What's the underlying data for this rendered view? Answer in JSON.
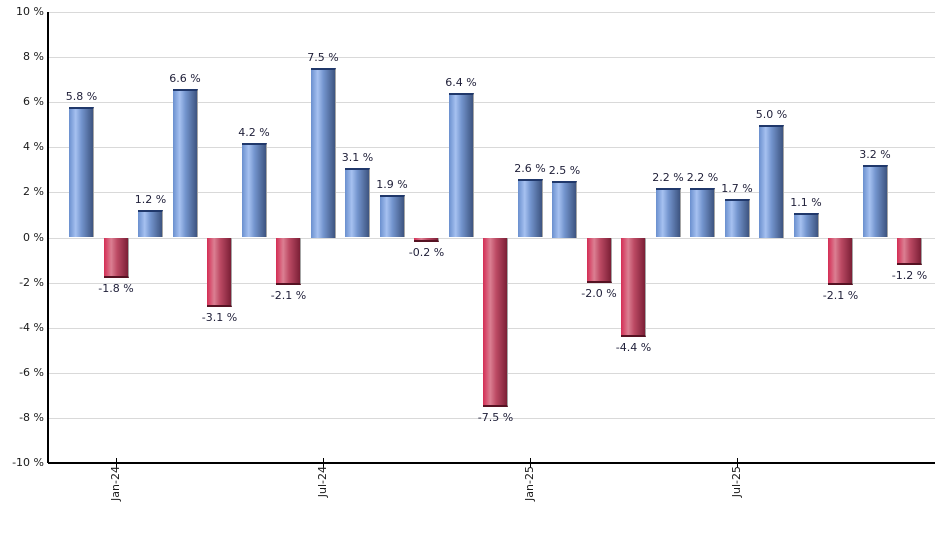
{
  "chart_data": {
    "type": "bar",
    "title": "",
    "xlabel": "",
    "ylabel": "",
    "ylim": [
      -10,
      10
    ],
    "y_tick_step": 2,
    "grid": "horizontal",
    "legend": "none",
    "values": [
      5.8,
      -1.8,
      1.2,
      6.6,
      -3.1,
      4.2,
      -2.1,
      7.5,
      3.1,
      1.9,
      -0.2,
      6.4,
      -7.5,
      2.6,
      2.5,
      -2.0,
      -4.4,
      2.2,
      2.2,
      1.7,
      5.0,
      1.1,
      -2.1,
      3.2,
      -1.2
    ],
    "bar_labels": [
      "5.8 %",
      "-1.8 %",
      "1.2 %",
      "6.6 %",
      "-3.1 %",
      "4.2 %",
      "-2.1 %",
      "7.5 %",
      "3.1 %",
      "1.9 %",
      "-0.2 %",
      "6.4 %",
      "-7.5 %",
      "2.6 %",
      "2.5 %",
      "-2.0 %",
      "-4.4 %",
      "2.2 %",
      "2.2 %",
      "1.7 %",
      "5.0 %",
      "1.1 %",
      "-2.1 %",
      "3.2 %",
      "-1.2 %"
    ],
    "x_ticks": [
      {
        "index": 1,
        "label": "Jan-24"
      },
      {
        "index": 7,
        "label": "Jul-24"
      },
      {
        "index": 13,
        "label": "Jan-25"
      },
      {
        "index": 19,
        "label": "Jul-25"
      }
    ],
    "y_ticks": [
      {
        "value": 10,
        "label": "10 %"
      },
      {
        "value": 8,
        "label": "8 %"
      },
      {
        "value": 6,
        "label": "6 %"
      },
      {
        "value": 4,
        "label": "4 %"
      },
      {
        "value": 2,
        "label": "2 %"
      },
      {
        "value": 0,
        "label": "0 %"
      },
      {
        "value": -2,
        "label": "-2 %"
      },
      {
        "value": -4,
        "label": "-4 %"
      },
      {
        "value": -6,
        "label": "-6 %"
      },
      {
        "value": -8,
        "label": "-8 %"
      },
      {
        "value": -10,
        "label": "-10 %"
      }
    ],
    "colors": {
      "positive_bar_gradient": [
        "#6a8fce",
        "#a6c1f0",
        "#7495ce",
        "#3d5480"
      ],
      "positive_bar_cap": "#20386b",
      "negative_bar_gradient": [
        "#d42c54",
        "#db7f92",
        "#bc4a64",
        "#7b1f36"
      ],
      "negative_bar_cap": "#551222",
      "bar_shadow": "#a6a6a6",
      "gridline": "#d9d9d9",
      "axis": "#000000",
      "value_label": "#1e1e38",
      "tick_label": "#1a1a1a",
      "background": "#ffffff"
    }
  }
}
